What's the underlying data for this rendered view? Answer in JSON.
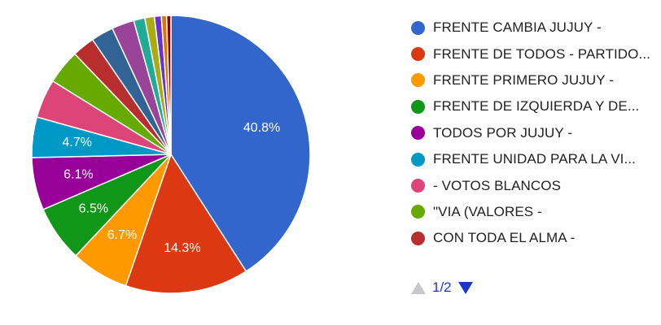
{
  "chart_data": {
    "type": "pie",
    "slices": [
      {
        "label": "FRENTE CAMBIA JUJUY -",
        "value": 40.8,
        "color": "#3366cc",
        "display": "40.8%"
      },
      {
        "label": "FRENTE DE TODOS - PARTIDO...",
        "value": 14.3,
        "color": "#dc3912",
        "display": "14.3%"
      },
      {
        "label": "FRENTE PRIMERO JUJUY -",
        "value": 6.7,
        "color": "#ff9900",
        "display": "6.7%"
      },
      {
        "label": "FRENTE DE IZQUIERDA Y DE...",
        "value": 6.5,
        "color": "#109618",
        "display": "6.5%"
      },
      {
        "label": "TODOS POR JUJUY -",
        "value": 6.1,
        "color": "#990099",
        "display": "6.1%"
      },
      {
        "label": "FRENTE UNIDAD PARA LA VI...",
        "value": 4.7,
        "color": "#0099c6",
        "display": "4.7%"
      },
      {
        "label": "- VOTOS BLANCOS",
        "value": 4.5,
        "color": "#dd4477",
        "display": ""
      },
      {
        "label": "\"VIA (VALORES -",
        "value": 4.0,
        "color": "#66aa00",
        "display": ""
      },
      {
        "label": "CON TODA EL ALMA -",
        "value": 2.6,
        "color": "#b82e2e",
        "display": ""
      },
      {
        "label": "",
        "value": 2.6,
        "color": "#316395",
        "display": ""
      },
      {
        "label": "",
        "value": 2.6,
        "color": "#994499",
        "display": ""
      },
      {
        "label": "",
        "value": 1.3,
        "color": "#22aa99",
        "display": ""
      },
      {
        "label": "",
        "value": 1.1,
        "color": "#aaaa11",
        "display": ""
      },
      {
        "label": "",
        "value": 0.8,
        "color": "#6633cc",
        "display": ""
      },
      {
        "label": "",
        "value": 0.6,
        "color": "#e67300",
        "display": ""
      },
      {
        "label": "",
        "value": 0.5,
        "color": "#8b0707",
        "display": ""
      }
    ],
    "legend_position": "right"
  },
  "legend": {
    "items": [
      {
        "label": "FRENTE CAMBIA JUJUY -",
        "color": "#3366cc"
      },
      {
        "label": "FRENTE DE TODOS - PARTIDO...",
        "color": "#dc3912"
      },
      {
        "label": "FRENTE PRIMERO JUJUY -",
        "color": "#ff9900"
      },
      {
        "label": "FRENTE DE IZQUIERDA Y DE...",
        "color": "#109618"
      },
      {
        "label": "TODOS POR JUJUY -",
        "color": "#990099"
      },
      {
        "label": "FRENTE UNIDAD PARA LA VI...",
        "color": "#0099c6"
      },
      {
        "label": "- VOTOS BLANCOS",
        "color": "#dd4477"
      },
      {
        "label": "\"VIA (VALORES -",
        "color": "#66aa00"
      },
      {
        "label": "CON TODA EL ALMA -",
        "color": "#b82e2e"
      }
    ]
  },
  "pager": {
    "text": "1/2",
    "prev_icon": "triangle-up-icon",
    "next_icon": "triangle-down-icon"
  },
  "colors": {
    "pager_active": "#1a37c8",
    "pager_disabled": "#c8c8c8"
  }
}
